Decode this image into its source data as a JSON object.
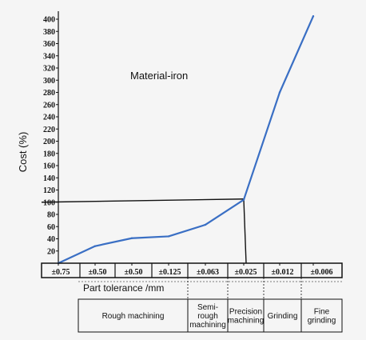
{
  "chart_data": {
    "type": "line",
    "title": "",
    "annotation": "Material-iron",
    "ylabel": "Cost (%)",
    "xlabel": "Part tolerance /mm",
    "ylim": [
      0,
      410
    ],
    "yticks": [
      20,
      40,
      60,
      80,
      100,
      120,
      140,
      160,
      180,
      200,
      220,
      240,
      260,
      280,
      300,
      320,
      340,
      360,
      380,
      400
    ],
    "categories": [
      "±0.75",
      "±0.50",
      "±0.50",
      "±0.125",
      "±0.063",
      "±0.025",
      "±0.012",
      "±0.006"
    ],
    "series": [
      {
        "points": [
          {
            "x": 0,
            "y": 0
          },
          {
            "x": 1,
            "y": 28
          },
          {
            "x": 2,
            "y": 41
          },
          {
            "x": 3,
            "y": 44
          },
          {
            "x": 4,
            "y": 63
          },
          {
            "x": 5,
            "y": 104
          },
          {
            "x": 6,
            "y": 280
          },
          {
            "x": 7,
            "y": 405
          }
        ],
        "color": "#3a6fc4"
      }
    ],
    "reference": {
      "x": 5,
      "y": 100
    },
    "processes": [
      {
        "label": "Rough machining",
        "span": [
          0,
          4
        ]
      },
      {
        "label": "Semi-rough machining",
        "span": [
          4,
          5
        ]
      },
      {
        "label": "Precision machining",
        "span": [
          5,
          6
        ]
      },
      {
        "label": "Grinding",
        "span": [
          6,
          7
        ]
      },
      {
        "label": "Fine grinding",
        "span": [
          7,
          8
        ]
      }
    ]
  }
}
